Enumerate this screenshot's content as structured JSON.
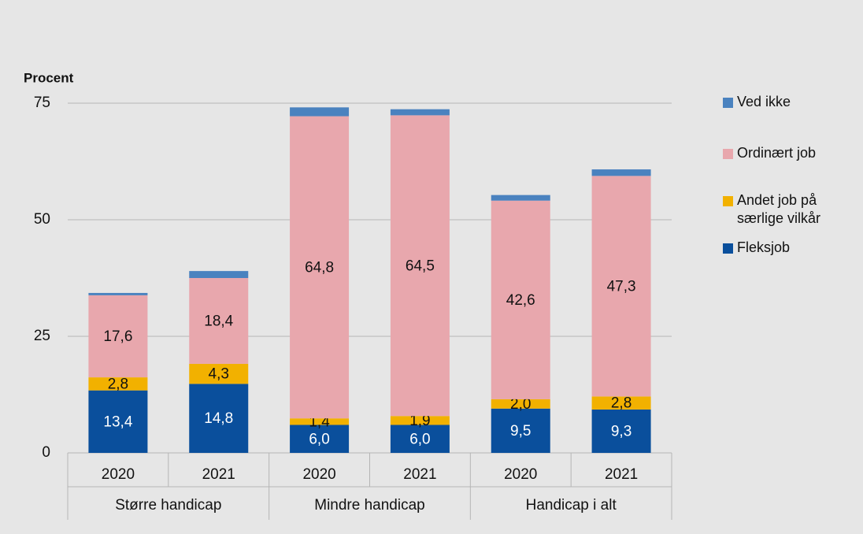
{
  "chart_data": {
    "type": "stacked_bar",
    "y_label": "Procent",
    "categories": [
      "2020",
      "2021",
      "2020",
      "2021",
      "2020",
      "2021"
    ],
    "groups": [
      "Større handicap",
      "Mindre handicap",
      "Handicap i alt"
    ],
    "ylim": [
      0,
      75
    ],
    "yticks": [
      0,
      25,
      50,
      75
    ],
    "grid": true,
    "legend": "right",
    "series": [
      {
        "name": "Fleksjob",
        "color": "#0a4f9c",
        "values": [
          13.4,
          14.8,
          6.0,
          6.0,
          9.5,
          9.3
        ],
        "value_labels": [
          "13,4",
          "14,8",
          "6,0",
          "6,0",
          "9,5",
          "9,3"
        ]
      },
      {
        "name": "Andet job på særlige vilkår",
        "color": "#f2b100",
        "values": [
          2.8,
          4.3,
          1.4,
          1.9,
          2.0,
          2.8
        ],
        "value_labels": [
          "2,8",
          "4,3",
          "1,4",
          "1,9",
          "2,0",
          "2,8"
        ]
      },
      {
        "name": "Ordinært job",
        "color": "#e8a7ad",
        "values": [
          17.6,
          18.4,
          64.8,
          64.5,
          42.6,
          47.3
        ],
        "value_labels": [
          "17,6",
          "18,4",
          "64,8",
          "64,5",
          "42,6",
          "47,3"
        ]
      },
      {
        "name": "Ved ikke",
        "color": "#4a82bf",
        "values": [
          0.5,
          1.5,
          1.9,
          1.3,
          1.2,
          1.4
        ]
      }
    ]
  }
}
